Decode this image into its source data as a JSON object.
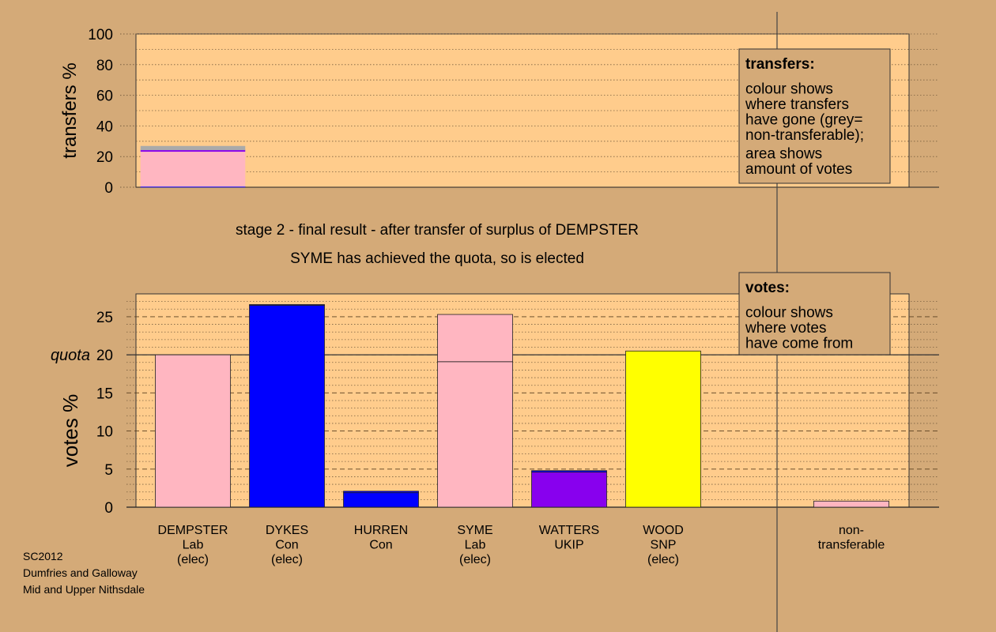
{
  "chart_data": [
    {
      "type": "stacked-bar",
      "y_label": "transfers %",
      "ylim": [
        0,
        100
      ],
      "yticks": [
        0,
        20,
        40,
        60,
        80,
        100
      ],
      "series": [
        {
          "color": "#0000ff",
          "values": [
            0.5
          ]
        },
        {
          "color": "#ffb6c1",
          "values": [
            22.8
          ]
        },
        {
          "color": "#8800ee",
          "values": [
            1
          ]
        },
        {
          "color": "#aaaaaa",
          "values": [
            2.5
          ]
        }
      ],
      "note": {
        "heading": "transfers:",
        "paragraphs": [
          [
            "colour shows",
            "where transfers",
            "have gone (grey=",
            "non-transferable);"
          ],
          [
            "area shows",
            "amount of votes"
          ]
        ]
      }
    },
    {
      "type": "stacked-bar",
      "title": "stage 2 - final result - after transfer of surplus of DEMPSTER",
      "subtitle": "SYME has achieved the quota, so is elected",
      "y_label": "votes %",
      "categories": [
        [
          "DEMPSTER",
          "Lab",
          "(elec)"
        ],
        [
          "DYKES",
          "Con",
          "(elec)"
        ],
        [
          "HURREN",
          "Con"
        ],
        [
          "SYME",
          "Lab",
          "(elec)"
        ],
        [
          "WATTERS",
          "UKIP"
        ],
        [
          "WOOD",
          "SNP",
          "(elec)"
        ],
        null,
        [
          "non-",
          "transferable"
        ]
      ],
      "ylim": [
        0,
        28
      ],
      "yticks": [
        0,
        5,
        10,
        15,
        20,
        25
      ],
      "quota": 20,
      "quota_label": "quota",
      "series": [
        {
          "colors": [
            "#ffb6c1",
            "#0000ff",
            "#0000ff",
            "#ffb6c1",
            "#8800ee",
            "#ffff00",
            null,
            "#ffb6c1"
          ],
          "values": [
            20,
            26.5,
            1.9,
            19.1,
            4.6,
            20.5,
            null,
            0
          ]
        },
        {
          "colors": [
            "#ffb6c1",
            "#0000ff",
            "#0000ff",
            "#ffb6c1",
            "#0000ff",
            "#ffff00",
            null,
            "#ffb6c1"
          ],
          "values": [
            0,
            0.1,
            0.2,
            6.2,
            0.2,
            0,
            null,
            0.8
          ]
        }
      ],
      "note": {
        "heading": "votes:",
        "paragraphs": [
          [
            "colour shows",
            "where votes",
            "have come from"
          ]
        ]
      }
    }
  ],
  "footer": [
    "SC2012",
    "Dumfries and Galloway",
    "Mid and Upper Nithsdale"
  ]
}
